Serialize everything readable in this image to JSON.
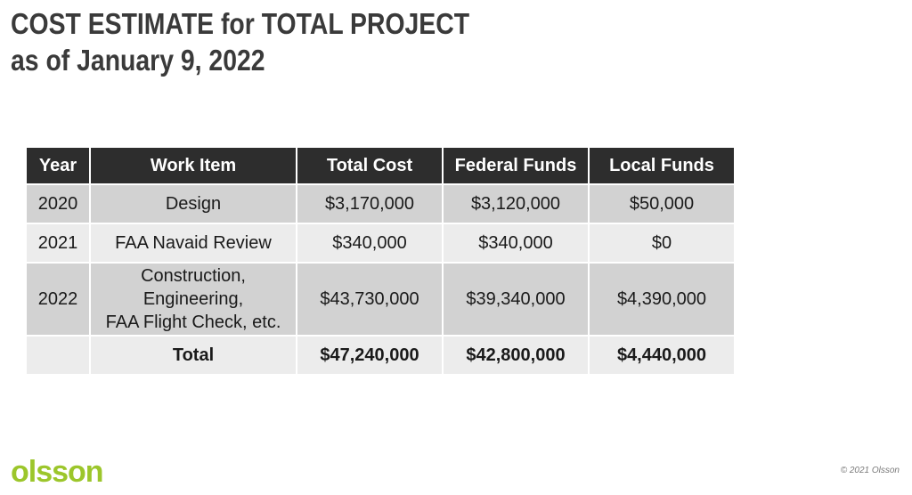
{
  "slide": {
    "title_line1": "COST ESTIMATE for TOTAL PROJECT",
    "title_line2": "as of January 9, 2022"
  },
  "table": {
    "headers": [
      "Year",
      "Work Item",
      "Total Cost",
      "Federal Funds",
      "Local Funds"
    ],
    "rows": [
      {
        "year": "2020",
        "work_item": [
          "Design"
        ],
        "total_cost": "$3,170,000",
        "federal_funds": "$3,120,000",
        "local_funds": "$50,000"
      },
      {
        "year": "2021",
        "work_item": [
          "FAA Navaid Review"
        ],
        "total_cost": "$340,000",
        "federal_funds": "$340,000",
        "local_funds": "$0"
      },
      {
        "year": "2022",
        "work_item": [
          "Construction,",
          "Engineering,",
          "FAA Flight Check, etc."
        ],
        "total_cost": "$43,730,000",
        "federal_funds": "$39,340,000",
        "local_funds": "$4,390,000"
      }
    ],
    "total_row": {
      "label": "Total",
      "total_cost": "$47,240,000",
      "federal_funds": "$42,800,000",
      "local_funds": "$4,440,000"
    }
  },
  "colors": {
    "header_bg": "#2d2d2d",
    "row_dark": "#d2d2d2",
    "row_light": "#ececec",
    "brand_green": "#9cc62b",
    "title_color": "#3a3a3a"
  },
  "footer": {
    "logo_text": "olsson",
    "copyright": "© 2021 Olsson"
  }
}
